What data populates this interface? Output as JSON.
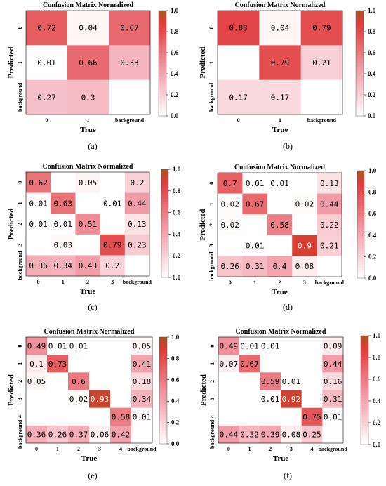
{
  "palette": {
    "low": "#ffffff",
    "mid": "#f09aa6",
    "high": "#e03a3a",
    "dark": "#a8561e",
    "frame": "#000000"
  },
  "colorbar_ticks": [
    "0.0",
    "0.2",
    "0.4",
    "0.6",
    "0.8",
    "1.0"
  ],
  "chart_data": [
    {
      "type": "heatmap",
      "caption": "(a)",
      "title": "Confusion Matrix Normalized",
      "xlabel": "True",
      "ylabel": "Predicted",
      "x_ticks": [
        "0",
        "1",
        "background"
      ],
      "y_ticks": [
        "0",
        "1",
        "background"
      ],
      "values": [
        [
          0.72,
          0.04,
          0.67
        ],
        [
          0.01,
          0.66,
          0.33
        ],
        [
          0.27,
          0.3,
          null
        ]
      ],
      "vlim": [
        0.0,
        1.0
      ]
    },
    {
      "type": "heatmap",
      "caption": "(b)",
      "title": "Confusion Matrix Normalized",
      "xlabel": "True",
      "ylabel": "Predicted",
      "x_ticks": [
        "0",
        "1",
        "background"
      ],
      "y_ticks": [
        "0",
        "1",
        "background"
      ],
      "values": [
        [
          0.83,
          0.04,
          0.79
        ],
        [
          null,
          0.79,
          0.21
        ],
        [
          0.17,
          0.17,
          null
        ]
      ],
      "vlim": [
        0.0,
        1.0
      ]
    },
    {
      "type": "heatmap",
      "caption": "(c)",
      "title": "Confusion Matrix Normalized",
      "xlabel": "True",
      "ylabel": "Predicted",
      "x_ticks": [
        "0",
        "1",
        "2",
        "3",
        "background"
      ],
      "y_ticks": [
        "0",
        "1",
        "2",
        "3",
        "background"
      ],
      "values": [
        [
          0.62,
          null,
          0.05,
          null,
          0.2
        ],
        [
          0.01,
          0.63,
          null,
          0.01,
          0.44
        ],
        [
          0.01,
          0.01,
          0.51,
          null,
          0.13
        ],
        [
          null,
          0.03,
          null,
          0.79,
          0.23
        ],
        [
          0.36,
          0.34,
          0.43,
          0.2,
          null
        ]
      ],
      "vlim": [
        0.0,
        1.0
      ]
    },
    {
      "type": "heatmap",
      "caption": "(d)",
      "title": "Confusion Matrix Normalized",
      "xlabel": "True",
      "ylabel": "Predicted",
      "x_ticks": [
        "0",
        "1",
        "2",
        "3",
        "background"
      ],
      "y_ticks": [
        "0",
        "1",
        "2",
        "3",
        "background"
      ],
      "values": [
        [
          0.7,
          0.01,
          0.01,
          null,
          0.13
        ],
        [
          0.02,
          0.67,
          null,
          0.02,
          0.44
        ],
        [
          0.02,
          null,
          0.58,
          null,
          0.22
        ],
        [
          null,
          0.01,
          null,
          0.9,
          0.21
        ],
        [
          0.26,
          0.31,
          0.4,
          0.08,
          null
        ]
      ],
      "vlim": [
        0.0,
        1.0
      ]
    },
    {
      "type": "heatmap",
      "caption": "(e)",
      "title": "Confusion Matrix Normalized",
      "xlabel": "True",
      "ylabel": "Predicted",
      "x_ticks": [
        "0",
        "1",
        "2",
        "3",
        "4",
        "background"
      ],
      "y_ticks": [
        "0",
        "1",
        "2",
        "3",
        "4",
        "background"
      ],
      "values": [
        [
          0.49,
          0.01,
          0.01,
          null,
          null,
          0.05
        ],
        [
          0.1,
          0.73,
          null,
          null,
          null,
          0.41
        ],
        [
          0.05,
          null,
          0.6,
          null,
          null,
          0.18
        ],
        [
          null,
          null,
          0.02,
          0.93,
          null,
          0.34
        ],
        [
          null,
          null,
          null,
          null,
          0.58,
          0.01
        ],
        [
          0.36,
          0.26,
          0.37,
          0.06,
          0.42,
          null
        ]
      ],
      "vlim": [
        0.0,
        1.0
      ]
    },
    {
      "type": "heatmap",
      "caption": "(f)",
      "title": "Confusion Matrix Normalized",
      "xlabel": "True",
      "ylabel": "Predicted",
      "x_ticks": [
        "0",
        "1",
        "2",
        "3",
        "4",
        "background"
      ],
      "y_ticks": [
        "0",
        "1",
        "2",
        "3",
        "4",
        "background"
      ],
      "values": [
        [
          0.49,
          0.01,
          0.01,
          null,
          null,
          0.09
        ],
        [
          0.07,
          0.67,
          null,
          null,
          null,
          0.44
        ],
        [
          null,
          null,
          0.59,
          0.01,
          null,
          0.16
        ],
        [
          null,
          null,
          0.01,
          0.92,
          null,
          0.31
        ],
        [
          null,
          null,
          null,
          null,
          0.75,
          0.01
        ],
        [
          0.44,
          0.32,
          0.39,
          0.08,
          0.25,
          null
        ]
      ],
      "vlim": [
        0.0,
        1.0
      ]
    }
  ]
}
